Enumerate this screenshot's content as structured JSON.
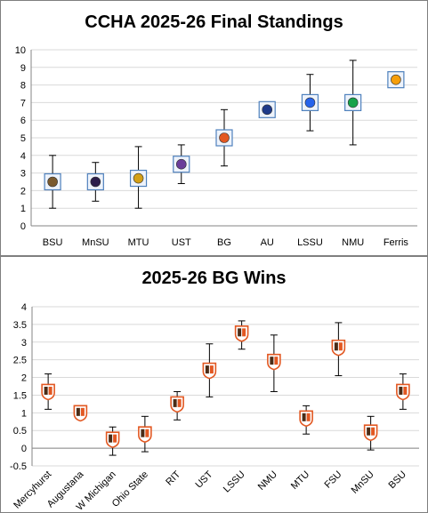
{
  "chart_data": [
    {
      "type": "scatter",
      "title": "CCHA 2025-26 Final Standings",
      "xlabel": "",
      "ylabel": "",
      "categories": [
        "BSU",
        "MnSU",
        "MTU",
        "UST",
        "BG",
        "AU",
        "LSSU",
        "NMU",
        "Ferris"
      ],
      "values": [
        2.5,
        2.5,
        2.7,
        3.5,
        5.0,
        6.6,
        7.0,
        7.0,
        8.3
      ],
      "error_low": [
        1.0,
        1.4,
        1.0,
        2.4,
        3.4,
        6.6,
        5.4,
        4.6,
        8.3
      ],
      "error_high": [
        4.0,
        3.6,
        4.5,
        4.6,
        6.6,
        7.0,
        8.6,
        9.4,
        8.7
      ],
      "ylim": [
        0,
        10
      ],
      "yticks": [
        0,
        1,
        2,
        3,
        4,
        5,
        6,
        7,
        8,
        9,
        10
      ],
      "grid": true,
      "marker_colors": [
        "#7a5a2e",
        "#2b1d4a",
        "#d4a017",
        "#6a3d9a",
        "#e25822",
        "#1e3a8a",
        "#2563eb",
        "#16a34a",
        "#f59e0b"
      ]
    },
    {
      "type": "scatter",
      "title": "2025-26 BG Wins",
      "xlabel": "",
      "ylabel": "",
      "categories": [
        "Mercyhurst",
        "Augustana",
        "W Michigan",
        "Ohio State",
        "RIT",
        "UST",
        "LSSU",
        "NMU",
        "MTU",
        "FSU",
        "MnSU",
        "BSU"
      ],
      "values": [
        1.6,
        1.0,
        0.25,
        0.4,
        1.25,
        2.2,
        3.25,
        2.45,
        0.85,
        2.85,
        0.45,
        1.6
      ],
      "error_low": [
        1.1,
        1.0,
        -0.2,
        -0.1,
        0.8,
        1.45,
        2.8,
        1.6,
        0.4,
        2.05,
        -0.05,
        1.1
      ],
      "error_high": [
        2.1,
        1.0,
        0.6,
        0.9,
        1.6,
        2.95,
        3.6,
        3.2,
        1.2,
        3.55,
        0.9,
        2.1
      ],
      "ylim": [
        -0.5,
        4
      ],
      "yticks": [
        -0.5,
        0,
        0.5,
        1,
        1.5,
        2,
        2.5,
        3,
        3.5,
        4
      ],
      "ytick_labels": [
        "-0.5",
        "0",
        "0.5",
        "1",
        "1.5",
        "2",
        "2.5",
        "3",
        "3.5",
        "4"
      ],
      "grid": true,
      "marker_colors": [
        "#e25822"
      ]
    }
  ]
}
